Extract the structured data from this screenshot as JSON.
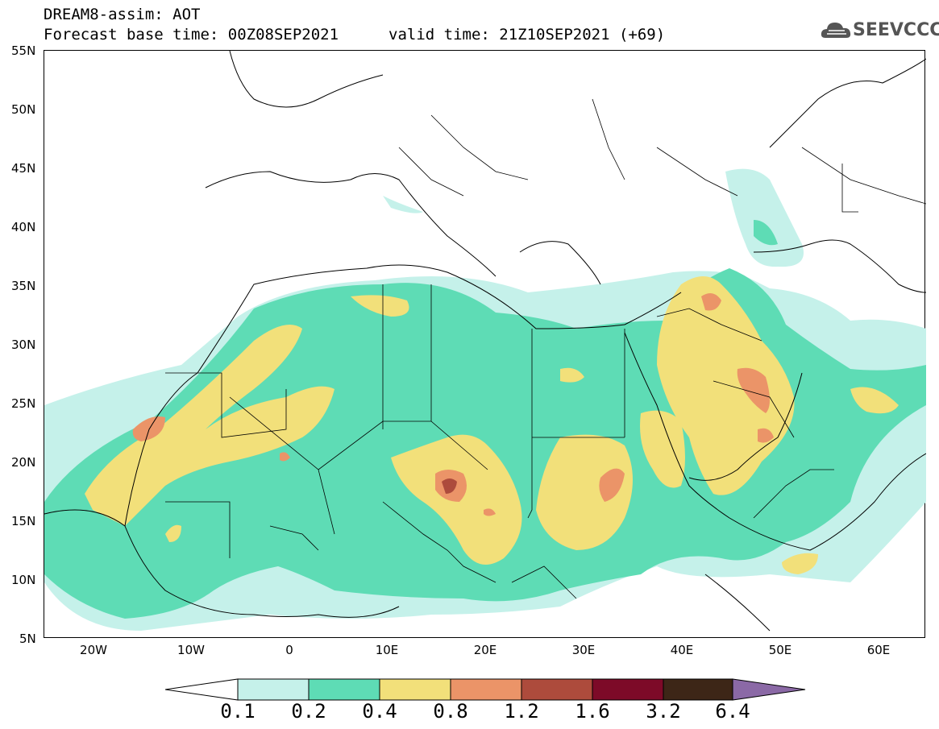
{
  "header": {
    "line1": "DREAM8-assim: AOT",
    "line2": "Forecast base time: 00Z08SEP2021",
    "line3": "valid time: 21Z10SEP2021 (+69)"
  },
  "logo": {
    "text": "SEEVCCC"
  },
  "axes": {
    "lat_labels": [
      "55N",
      "50N",
      "45N",
      "40N",
      "35N",
      "30N",
      "25N",
      "20N",
      "15N",
      "10N",
      "5N"
    ],
    "lon_labels": [
      "20W",
      "10W",
      "0",
      "10E",
      "20E",
      "30E",
      "40E",
      "50E",
      "60E"
    ]
  },
  "colorbar": {
    "labels": [
      "0.1",
      "0.2",
      "0.4",
      "0.8",
      "1.2",
      "1.6",
      "3.2",
      "6.4"
    ],
    "colors": [
      "#c5f1ea",
      "#5edcb5",
      "#f2e07a",
      "#eb9468",
      "#ad4b3c",
      "#7d0a28",
      "#3d2617",
      "#8b69a6"
    ]
  },
  "fields": {
    "c1": "#c5f1ea",
    "c2": "#5edcb5",
    "c3": "#f2e07a",
    "c4": "#eb9468",
    "c5": "#ad4b3c"
  }
}
